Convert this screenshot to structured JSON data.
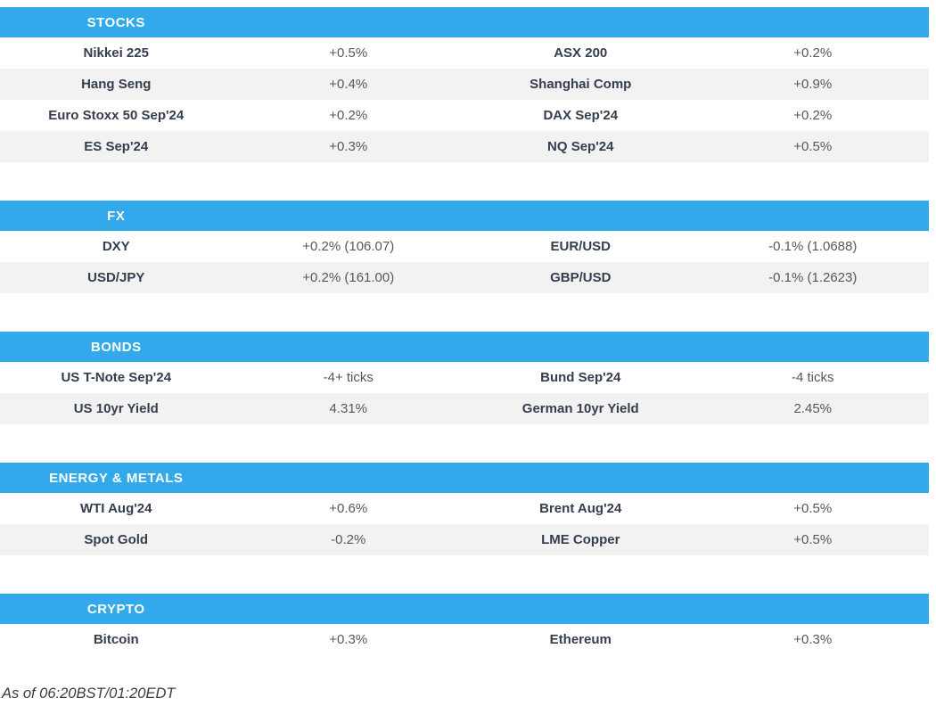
{
  "colors": {
    "header_bg": "#32a9ea",
    "header_text": "#ffffff",
    "row_alt_bg": "#f2f2f2",
    "name_text": "#343e4e",
    "value_text": "#56585d",
    "footer_text": "#3c3c3c"
  },
  "sections": [
    {
      "title": "STOCKS",
      "rows": [
        {
          "left_name": "Nikkei 225",
          "left_value": "+0.5%",
          "right_name": "ASX 200",
          "right_value": "+0.2%"
        },
        {
          "left_name": "Hang Seng",
          "left_value": "+0.4%",
          "right_name": "Shanghai Comp",
          "right_value": "+0.9%"
        },
        {
          "left_name": "Euro Stoxx 50 Sep'24",
          "left_value": "+0.2%",
          "right_name": "DAX Sep'24",
          "right_value": "+0.2%"
        },
        {
          "left_name": "ES Sep'24",
          "left_value": "+0.3%",
          "right_name": "NQ Sep'24",
          "right_value": "+0.5%"
        }
      ]
    },
    {
      "title": "FX",
      "rows": [
        {
          "left_name": "DXY",
          "left_value": "+0.2% (106.07)",
          "right_name": "EUR/USD",
          "right_value": "-0.1% (1.0688)"
        },
        {
          "left_name": "USD/JPY",
          "left_value": "+0.2% (161.00)",
          "right_name": "GBP/USD",
          "right_value": "-0.1% (1.2623)"
        }
      ]
    },
    {
      "title": "BONDS",
      "rows": [
        {
          "left_name": "US T-Note Sep'24",
          "left_value": "-4+ ticks",
          "right_name": "Bund Sep'24",
          "right_value": "-4 ticks"
        },
        {
          "left_name": "US 10yr Yield",
          "left_value": "4.31%",
          "right_name": "German 10yr Yield",
          "right_value": "2.45%"
        }
      ]
    },
    {
      "title": "ENERGY & METALS",
      "rows": [
        {
          "left_name": "WTI Aug'24",
          "left_value": "+0.6%",
          "right_name": "Brent Aug'24",
          "right_value": "+0.5%"
        },
        {
          "left_name": "Spot Gold",
          "left_value": "-0.2%",
          "right_name": "LME Copper",
          "right_value": "+0.5%"
        }
      ]
    },
    {
      "title": "CRYPTO",
      "rows": [
        {
          "left_name": "Bitcoin",
          "left_value": "+0.3%",
          "right_name": "Ethereum",
          "right_value": "+0.3%"
        }
      ]
    }
  ],
  "footer": {
    "as_of": "As of 06:20BST/01:20EDT"
  }
}
